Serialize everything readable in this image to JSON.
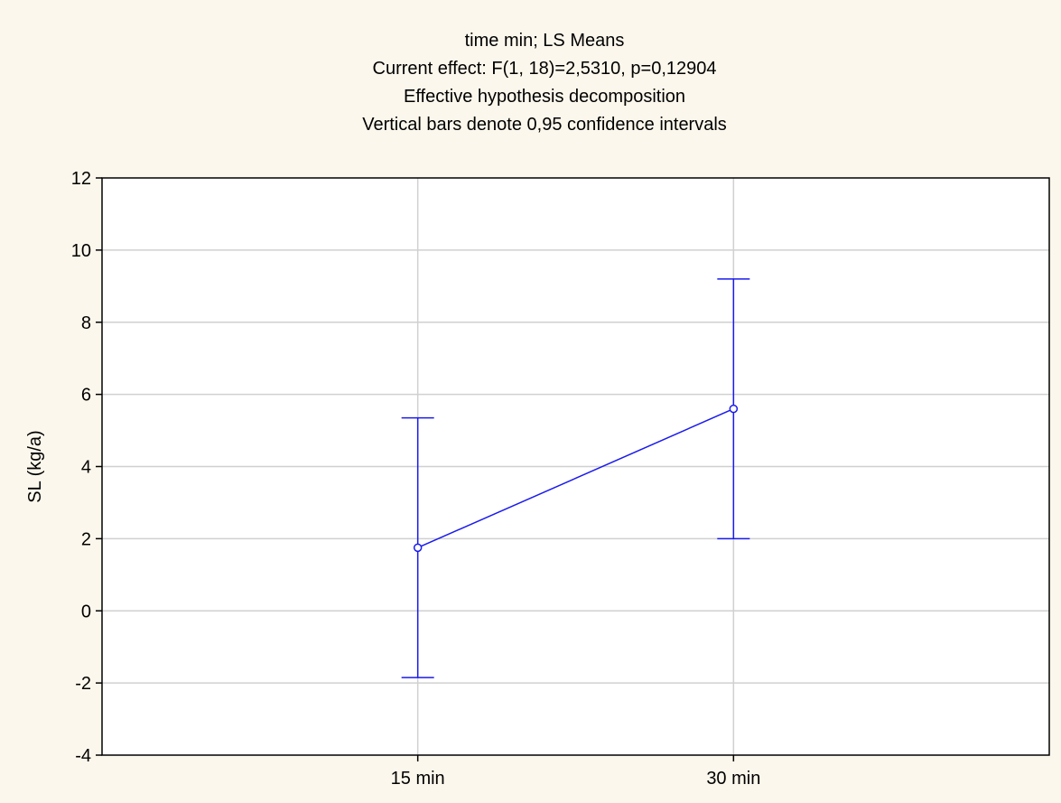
{
  "colors": {
    "background": "#fcf7ec",
    "plot_area": "#ffffff",
    "grid": "#d0d0d0",
    "series": "#1a1aee",
    "frame": "#000000"
  },
  "chart_data": {
    "type": "line",
    "title_lines": [
      "time min; LS Means",
      "Current effect: F(1, 18)=2,5310, p=0,12904",
      "Effective hypothesis decomposition",
      "Vertical bars denote 0,95 confidence intervals"
    ],
    "xlabel": "",
    "ylabel": "SL (kg/a)",
    "categories": [
      "15 min",
      "30 min"
    ],
    "ylim": [
      -4,
      12
    ],
    "yticks": [
      -4,
      -2,
      0,
      2,
      4,
      6,
      8,
      10,
      12
    ],
    "ytick_labels": [
      "-4",
      "-2",
      "0",
      "2",
      "4",
      "6",
      "8",
      "10",
      "12"
    ],
    "grid": true,
    "series": [
      {
        "values": [
          1.75,
          5.6
        ],
        "ci_lower": [
          -1.85,
          2.0
        ],
        "ci_upper": [
          5.35,
          9.2
        ]
      }
    ]
  }
}
